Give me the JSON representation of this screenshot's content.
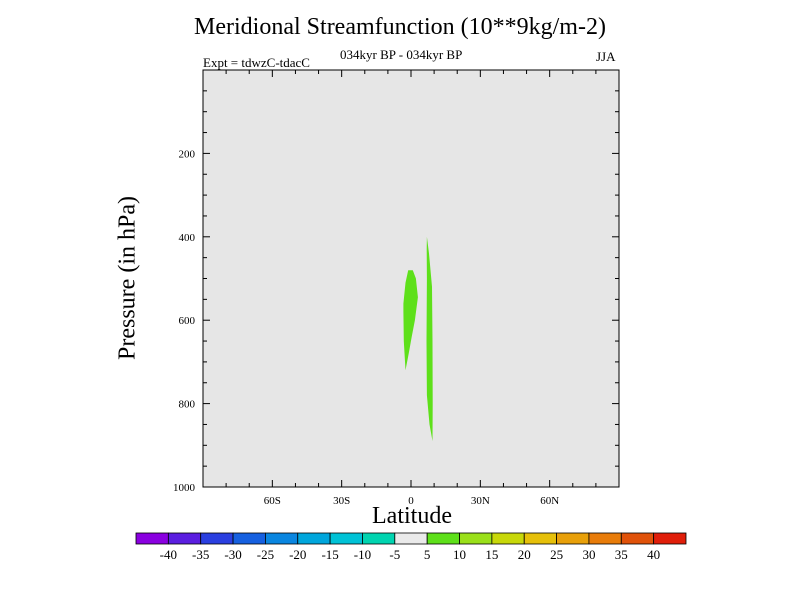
{
  "chart_data": {
    "type": "contour",
    "title": "Meridional Streamfunction (10**9kg/m-2)",
    "subtitle": "034kyr BP - 034kyr BP",
    "left_label": "Expt = tdwzC-tdacC",
    "right_label": "JJA",
    "xlabel": "Latitude",
    "ylabel": "Pressure (in hPa)",
    "xlim": [
      -90,
      90
    ],
    "ylim": [
      1000,
      0
    ],
    "x_ticks": [
      {
        "value": -60,
        "label": "60S"
      },
      {
        "value": -30,
        "label": "30S"
      },
      {
        "value": 0,
        "label": "0"
      },
      {
        "value": 30,
        "label": "30N"
      },
      {
        "value": 60,
        "label": "60N"
      }
    ],
    "y_ticks": [
      {
        "value": 200,
        "label": "200"
      },
      {
        "value": 400,
        "label": "400"
      },
      {
        "value": 600,
        "label": "600"
      },
      {
        "value": 800,
        "label": "800"
      },
      {
        "value": 1000,
        "label": "1000"
      }
    ],
    "background_color": "#e6e6e6",
    "colorbar": {
      "levels": [
        "-40",
        "-35",
        "-30",
        "-25",
        "-20",
        "-15",
        "-10",
        "-5",
        "5",
        "10",
        "15",
        "20",
        "25",
        "30",
        "35",
        "40"
      ],
      "colors": [
        "#8a00e0",
        "#5b1ee0",
        "#2a3fe0",
        "#1660e0",
        "#0a86e0",
        "#00a6dc",
        "#00c2d6",
        "#00d4b0",
        "#eaeaea",
        "#5ee01a",
        "#9ae01a",
        "#c8d80a",
        "#e6c00a",
        "#e8a00a",
        "#e87c0a",
        "#e0520a",
        "#e01e0a"
      ]
    },
    "filled_regions": [
      {
        "name": "region-west",
        "level": "5 to 10",
        "color": "#5ee01a",
        "outline": [
          [
            -3.3,
            560
          ],
          [
            -2.4,
            510
          ],
          [
            -1.2,
            480
          ],
          [
            0.8,
            480
          ],
          [
            2.1,
            500
          ],
          [
            3.0,
            545
          ],
          [
            1.7,
            600
          ],
          [
            0.3,
            640
          ],
          [
            -1.0,
            680
          ],
          [
            -2.4,
            720
          ],
          [
            -3.1,
            650
          ],
          [
            -3.3,
            580
          ]
        ]
      },
      {
        "name": "region-east",
        "level": "5 to 10",
        "color": "#5ee01a",
        "outline": [
          [
            6.9,
            400
          ],
          [
            7.8,
            440
          ],
          [
            9.1,
            520
          ],
          [
            9.3,
            650
          ],
          [
            9.4,
            800
          ],
          [
            9.3,
            890
          ],
          [
            8.0,
            850
          ],
          [
            6.9,
            780
          ],
          [
            6.7,
            650
          ],
          [
            6.9,
            500
          ],
          [
            6.8,
            430
          ]
        ]
      }
    ]
  }
}
